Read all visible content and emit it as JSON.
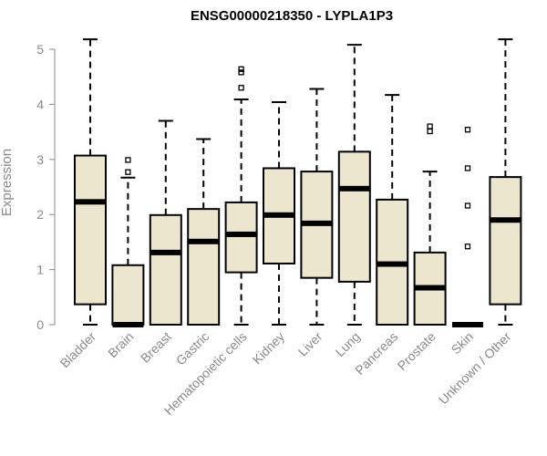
{
  "chart_data": {
    "type": "boxplot",
    "title": "ENSG00000218350 - LYPLA1P3",
    "xlabel": "",
    "ylabel": "Expression",
    "ylim": [
      0,
      5.2
    ],
    "yticks": [
      0,
      1,
      2,
      3,
      4,
      5
    ],
    "box_fill": "#ede6cf",
    "line_color": "#000000",
    "categories": [
      "Bladder",
      "Brain",
      "Breast",
      "Gastric",
      "Hematopoietic cells",
      "Kidney",
      "Liver",
      "Lung",
      "Pancreas",
      "Prostate",
      "Skin",
      "Unknown / Other"
    ],
    "boxes": [
      {
        "category": "Bladder",
        "whisker_low": 0.0,
        "q1": 0.37,
        "median": 2.23,
        "q3": 3.07,
        "whisker_high": 5.18,
        "outliers": []
      },
      {
        "category": "Brain",
        "whisker_low": 0.0,
        "q1": 0.0,
        "median": 0.0,
        "q3": 1.08,
        "whisker_high": 2.67,
        "outliers": [
          2.77,
          2.99
        ]
      },
      {
        "category": "Breast",
        "whisker_low": 0.0,
        "q1": 0.0,
        "median": 1.31,
        "q3": 1.99,
        "whisker_high": 3.7,
        "outliers": []
      },
      {
        "category": "Gastric",
        "whisker_low": 0.0,
        "q1": 0.0,
        "median": 1.51,
        "q3": 2.1,
        "whisker_high": 3.37,
        "outliers": []
      },
      {
        "category": "Hematopoietic cells",
        "whisker_low": 0.0,
        "q1": 0.95,
        "median": 1.64,
        "q3": 2.22,
        "whisker_high": 4.09,
        "outliers": [
          4.3,
          4.58,
          4.64
        ]
      },
      {
        "category": "Kidney",
        "whisker_low": 0.0,
        "q1": 1.11,
        "median": 1.99,
        "q3": 2.84,
        "whisker_high": 4.04,
        "outliers": []
      },
      {
        "category": "Liver",
        "whisker_low": 0.0,
        "q1": 0.85,
        "median": 1.84,
        "q3": 2.78,
        "whisker_high": 4.28,
        "outliers": []
      },
      {
        "category": "Lung",
        "whisker_low": 0.0,
        "q1": 0.78,
        "median": 2.47,
        "q3": 3.14,
        "whisker_high": 5.08,
        "outliers": []
      },
      {
        "category": "Pancreas",
        "whisker_low": 0.0,
        "q1": 0.0,
        "median": 1.1,
        "q3": 2.27,
        "whisker_high": 4.17,
        "outliers": []
      },
      {
        "category": "Prostate",
        "whisker_low": 0.0,
        "q1": 0.0,
        "median": 0.67,
        "q3": 1.31,
        "whisker_high": 2.78,
        "outliers": [
          3.51,
          3.6
        ]
      },
      {
        "category": "Skin",
        "whisker_low": 0.0,
        "q1": 0.0,
        "median": 0.0,
        "q3": 0.0,
        "whisker_high": 0.0,
        "outliers": [
          1.42,
          2.16,
          2.84,
          3.54
        ]
      },
      {
        "category": "Unknown / Other",
        "whisker_low": 0.0,
        "q1": 0.37,
        "median": 1.9,
        "q3": 2.68,
        "whisker_high": 5.18,
        "outliers": []
      }
    ]
  }
}
